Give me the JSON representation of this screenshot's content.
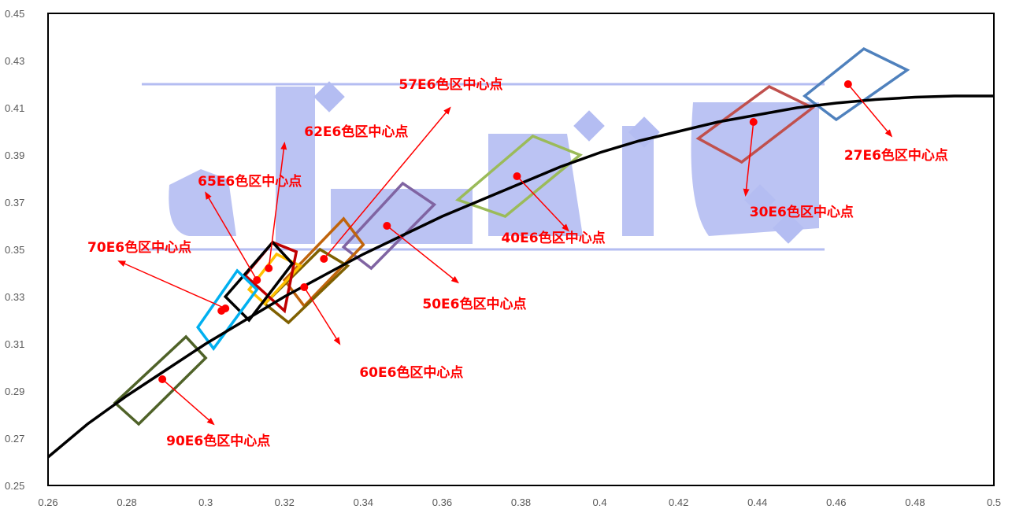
{
  "chart_data": {
    "type": "scatter",
    "xlim": [
      0.26,
      0.5
    ],
    "ylim": [
      0.25,
      0.45
    ],
    "x_ticks": [
      "0.26",
      "0.28",
      "0.3",
      "0.32",
      "0.34",
      "0.36",
      "0.38",
      "0.4",
      "0.42",
      "0.44",
      "0.46",
      "0.48",
      "0.5"
    ],
    "y_ticks": [
      "0.25",
      "0.27",
      "0.29",
      "0.31",
      "0.33",
      "0.35",
      "0.37",
      "0.39",
      "0.41",
      "0.43",
      "0.45"
    ],
    "grid": false,
    "curve": {
      "color": "#000000",
      "points": [
        [
          0.26,
          0.262
        ],
        [
          0.27,
          0.276
        ],
        [
          0.28,
          0.288
        ],
        [
          0.29,
          0.299
        ],
        [
          0.3,
          0.31
        ],
        [
          0.31,
          0.32
        ],
        [
          0.32,
          0.33
        ],
        [
          0.33,
          0.339
        ],
        [
          0.34,
          0.348
        ],
        [
          0.35,
          0.356
        ],
        [
          0.36,
          0.364
        ],
        [
          0.37,
          0.371
        ],
        [
          0.38,
          0.378
        ],
        [
          0.39,
          0.385
        ],
        [
          0.4,
          0.391
        ],
        [
          0.41,
          0.396
        ],
        [
          0.42,
          0.4
        ],
        [
          0.43,
          0.404
        ],
        [
          0.44,
          0.407
        ],
        [
          0.45,
          0.41
        ],
        [
          0.46,
          0.412
        ],
        [
          0.47,
          0.4135
        ],
        [
          0.48,
          0.4145
        ],
        [
          0.49,
          0.415
        ],
        [
          0.5,
          0.415
        ]
      ]
    },
    "regions": [
      {
        "label": "27E6色区中心点",
        "color": "#4f81bd",
        "center": [
          0.463,
          0.42
        ],
        "quad": [
          [
            0.452,
            0.415
          ],
          [
            0.467,
            0.435
          ],
          [
            0.478,
            0.426
          ],
          [
            0.46,
            0.405
          ]
        ],
        "label_pos": [
          0.462,
          0.388
        ],
        "arrow_to": [
          0.474,
          0.398
        ]
      },
      {
        "label": "30E6色区中心点",
        "color": "#c0504d",
        "center": [
          0.439,
          0.404
        ],
        "quad": [
          [
            0.425,
            0.397
          ],
          [
            0.443,
            0.419
          ],
          [
            0.454,
            0.41
          ],
          [
            0.436,
            0.387
          ]
        ],
        "label_pos": [
          0.438,
          0.364
        ],
        "arrow_to": [
          0.437,
          0.373
        ]
      },
      {
        "label": "40E6色区中心点",
        "color": "#9bbb59",
        "center": [
          0.379,
          0.381
        ],
        "quad": [
          [
            0.364,
            0.371
          ],
          [
            0.383,
            0.398
          ],
          [
            0.395,
            0.39
          ],
          [
            0.376,
            0.364
          ]
        ],
        "label_pos": [
          0.375,
          0.353
        ],
        "arrow_to": [
          0.392,
          0.358
        ]
      },
      {
        "label": "50E6色区中心点",
        "color": "#8064a2",
        "center": [
          0.346,
          0.36
        ],
        "quad": [
          [
            0.335,
            0.351
          ],
          [
            0.35,
            0.378
          ],
          [
            0.358,
            0.369
          ],
          [
            0.342,
            0.342
          ]
        ],
        "label_pos": [
          0.355,
          0.325
        ],
        "arrow_to": [
          0.364,
          0.336
        ]
      },
      {
        "label": "57E6色区中心点",
        "color": "#c0640c",
        "center": [
          0.33,
          0.346
        ],
        "quad": [
          [
            0.32,
            0.337
          ],
          [
            0.335,
            0.363
          ],
          [
            0.34,
            0.352
          ],
          [
            0.325,
            0.326
          ]
        ],
        "label_pos": [
          0.349,
          0.418
        ],
        "arrow_to": [
          0.362,
          0.41
        ]
      },
      {
        "label": "60E6色区中心点",
        "color": "#7f6000",
        "center": [
          0.325,
          0.334
        ],
        "quad": [
          [
            0.315,
            0.327
          ],
          [
            0.329,
            0.35
          ],
          [
            0.336,
            0.343
          ],
          [
            0.321,
            0.319
          ]
        ],
        "label_pos": [
          0.339,
          0.296
        ],
        "arrow_to": [
          0.334,
          0.31
        ]
      },
      {
        "label": "62E6色区中心点",
        "color": "#ffc000",
        "center": [
          0.316,
          0.342
        ],
        "quad": [
          [
            0.311,
            0.333
          ],
          [
            0.318,
            0.348
          ],
          [
            0.324,
            0.343
          ],
          [
            0.315,
            0.327
          ]
        ],
        "label_pos": [
          0.325,
          0.398
        ],
        "arrow_to": [
          0.32,
          0.395
        ]
      },
      {
        "label": "65E6色区中心点",
        "color": "#c00000",
        "center": [
          0.313,
          0.337
        ],
        "quad": [
          [
            0.31,
            0.339
          ],
          [
            0.317,
            0.353
          ],
          [
            0.323,
            0.349
          ],
          [
            0.32,
            0.324
          ]
        ],
        "label_pos": [
          0.298,
          0.377
        ],
        "arrow_to": [
          0.3,
          0.374
        ]
      },
      {
        "label": "70E6色区中心点",
        "color": "#000000",
        "center": [
          0.305,
          0.325
        ],
        "quad": [
          [
            0.305,
            0.33
          ],
          [
            0.317,
            0.353
          ],
          [
            0.322,
            0.344
          ],
          [
            0.311,
            0.32
          ]
        ],
        "label_pos": [
          0.27,
          0.349
        ],
        "arrow_to": [
          0.278,
          0.345
        ]
      },
      {
        "label": "",
        "color": "#00b0f0",
        "center": [
          0.304,
          0.324
        ],
        "quad": [
          [
            0.298,
            0.317
          ],
          [
            0.308,
            0.341
          ],
          [
            0.313,
            0.333
          ],
          [
            0.302,
            0.308
          ]
        ],
        "label_pos": null,
        "arrow_to": null
      },
      {
        "label": "90E6色区中心点",
        "color": "#4f6228",
        "center": [
          0.289,
          0.295
        ],
        "quad": [
          [
            0.277,
            0.285
          ],
          [
            0.295,
            0.313
          ],
          [
            0.3,
            0.304
          ],
          [
            0.283,
            0.276
          ]
        ],
        "label_pos": [
          0.29,
          0.267
        ],
        "arrow_to": [
          0.302,
          0.276
        ]
      }
    ]
  },
  "watermark": {
    "color": "#b4bdf2",
    "lines_y": [
      0.42,
      0.35
    ]
  }
}
